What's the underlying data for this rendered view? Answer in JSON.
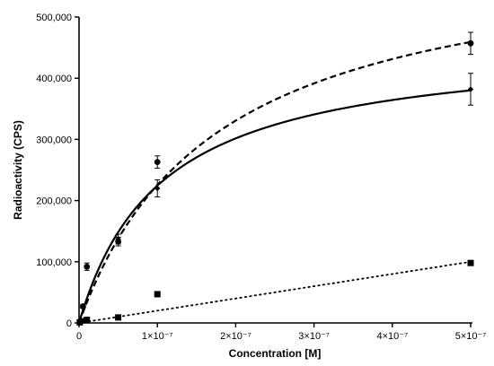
{
  "chart_data": {
    "type": "scatter",
    "xlabel": "Concentration [M]",
    "ylabel": "Radioactivity (CPS)",
    "xlim": [
      0,
      5e-07
    ],
    "ylim": [
      0,
      500000
    ],
    "x_ticks": [
      {
        "value": 0,
        "label": "0"
      },
      {
        "value": 1e-07,
        "label": "1×10⁻⁷"
      },
      {
        "value": 2e-07,
        "label": "2×10⁻⁷"
      },
      {
        "value": 3e-07,
        "label": "3×10⁻⁷"
      },
      {
        "value": 4e-07,
        "label": "4×10⁻⁷"
      },
      {
        "value": 5e-07,
        "label": "5×10⁻⁷"
      }
    ],
    "y_ticks": [
      {
        "value": 0,
        "label": "0"
      },
      {
        "value": 100000,
        "label": "100,000"
      },
      {
        "value": 200000,
        "label": "200,000"
      },
      {
        "value": 300000,
        "label": "300,000"
      },
      {
        "value": 400000,
        "label": "400,000"
      },
      {
        "value": 500000,
        "label": "500,000"
      }
    ],
    "grid": false,
    "series": [
      {
        "marker": "circle",
        "line_style": "dashed",
        "fit": "saturation",
        "fit_params": {
          "Bmax": 620000,
          "Kd": 1.75e-07
        },
        "points": [
          {
            "x": 1e-09,
            "y": 2000,
            "err": 1500
          },
          {
            "x": 5e-09,
            "y": 27000,
            "err": 3000
          },
          {
            "x": 1e-08,
            "y": 92000,
            "err": 6000
          },
          {
            "x": 5e-08,
            "y": 133000,
            "err": 7000
          },
          {
            "x": 1e-07,
            "y": 263000,
            "err": 10000
          },
          {
            "x": 5e-07,
            "y": 457000,
            "err": 18000
          }
        ]
      },
      {
        "marker": "diamond",
        "line_style": "solid",
        "fit": "saturation",
        "fit_params": {
          "Bmax": 460000,
          "Kd": 1.05e-07
        },
        "points": [
          {
            "x": 1e-09,
            "y": 1500,
            "err": 1000
          },
          {
            "x": 5e-09,
            "y": 4000,
            "err": 2000
          },
          {
            "x": 1e-08,
            "y": 6000,
            "err": 2000
          },
          {
            "x": 5e-08,
            "y": 137000,
            "err": 8000
          },
          {
            "x": 1e-07,
            "y": 220000,
            "err": 14000
          },
          {
            "x": 5e-07,
            "y": 382000,
            "err": 26000
          }
        ]
      },
      {
        "marker": "square",
        "line_style": "dotted",
        "fit": "linear",
        "fit_params": {
          "slope": 200000000000.0,
          "intercept": 0
        },
        "points": [
          {
            "x": 1e-09,
            "y": 1000,
            "err": 0
          },
          {
            "x": 1e-08,
            "y": 5000,
            "err": 0
          },
          {
            "x": 5e-08,
            "y": 9000,
            "err": 0
          },
          {
            "x": 1e-07,
            "y": 47000,
            "err": 0
          },
          {
            "x": 5e-07,
            "y": 98000,
            "err": 0
          }
        ]
      }
    ]
  }
}
